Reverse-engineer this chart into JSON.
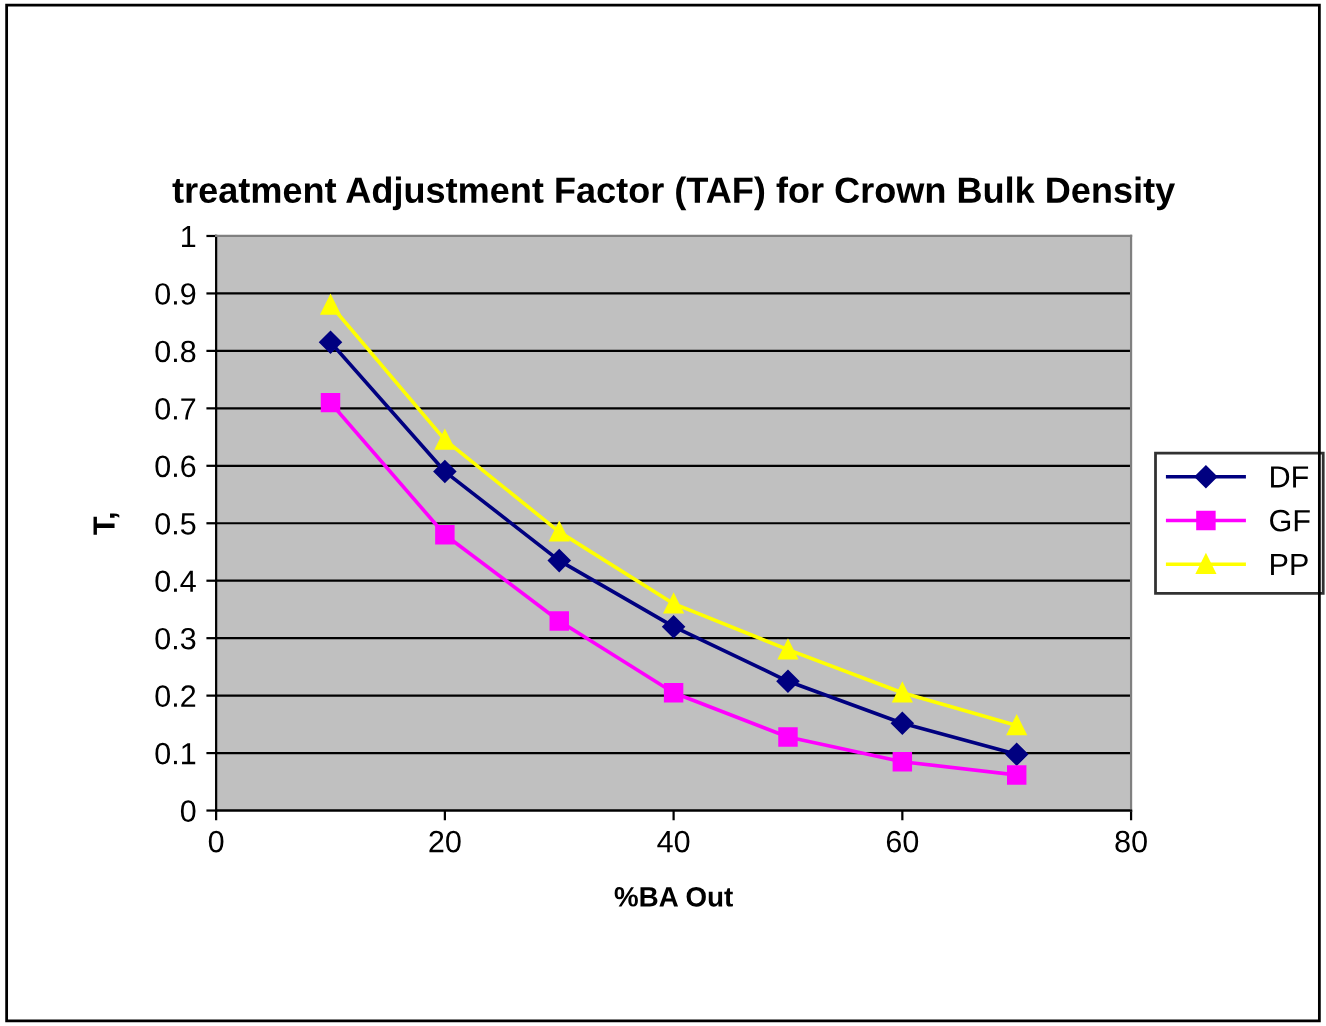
{
  "chart_data": {
    "type": "line",
    "title": "treatment Adjustment Factor (TAF) for Crown Bulk Density",
    "xlabel": "%BA Out",
    "ylabel": "T,",
    "x": [
      10,
      20,
      30,
      40,
      50,
      60,
      70
    ],
    "series": [
      {
        "name": "DF",
        "color": "#000080",
        "marker": "diamond",
        "values": [
          0.815,
          0.59,
          0.435,
          0.32,
          0.225,
          0.152,
          0.098
        ]
      },
      {
        "name": "GF",
        "color": "#ff00ff",
        "marker": "square",
        "values": [
          0.71,
          0.48,
          0.33,
          0.205,
          0.128,
          0.085,
          0.062
        ]
      },
      {
        "name": "PP",
        "color": "#ffff00",
        "marker": "triangle",
        "values": [
          0.88,
          0.645,
          0.485,
          0.36,
          0.28,
          0.205,
          0.148
        ]
      }
    ],
    "xlim": [
      0,
      80
    ],
    "xticks": [
      0,
      20,
      40,
      60,
      80
    ],
    "ylim": [
      0,
      1
    ],
    "yticks": [
      0,
      0.1,
      0.2,
      0.3,
      0.4,
      0.5,
      0.6,
      0.7,
      0.8,
      0.9,
      1
    ],
    "grid": "y",
    "legend": "right",
    "line_style": "solid"
  }
}
